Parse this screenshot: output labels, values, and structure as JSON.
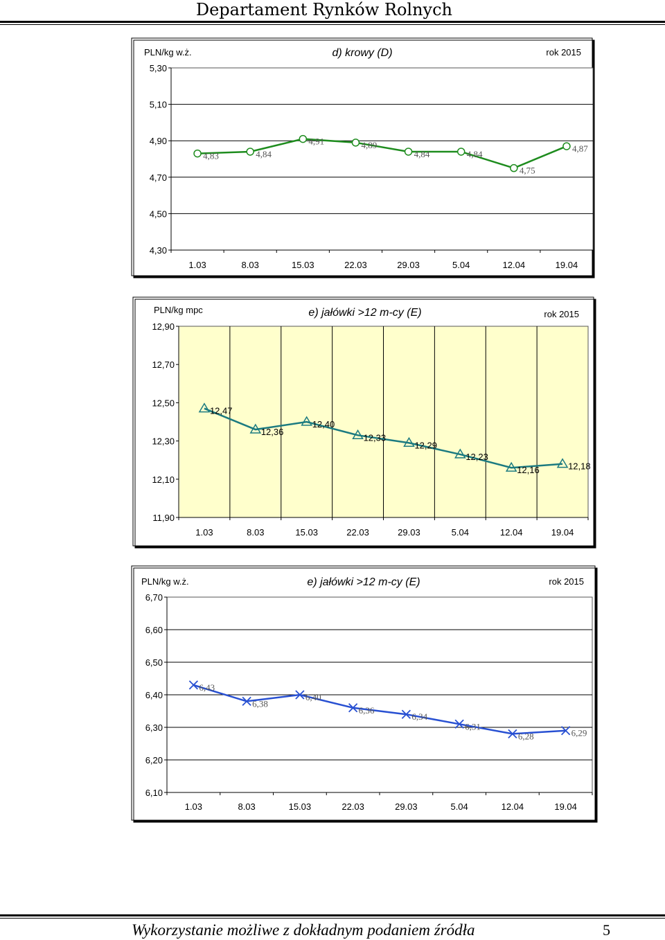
{
  "header": {
    "title": "Departament Rynków Rolnych"
  },
  "footer": {
    "text": "Wykorzystanie możliwe z dokładnym podaniem źródła",
    "page": "5"
  },
  "chart_data": [
    {
      "type": "line",
      "title": "d) krowy (D)",
      "unit": "PLN/kg w.ż.",
      "year_label": "rok 2015",
      "categories": [
        "1.03",
        "8.03",
        "15.03",
        "22.03",
        "29.03",
        "5.04",
        "12.04",
        "19.04"
      ],
      "series": [
        {
          "values": [
            4.83,
            4.84,
            4.91,
            4.89,
            4.84,
            4.84,
            4.75,
            4.87
          ],
          "labels": [
            "4,83",
            "4,84",
            "4,91",
            "4,89",
            "4,84",
            "4,84",
            "4,75",
            "4,87"
          ]
        }
      ],
      "ylim": [
        4.3,
        5.3
      ],
      "yticks": [
        "5,30",
        "5,10",
        "4,90",
        "4,70",
        "4,50",
        "4,30"
      ],
      "grid": "horizontal",
      "line_color": "#1e8c1e",
      "marker": "circle",
      "plot_background": "#ffffff"
    },
    {
      "type": "line",
      "title": "e) jałówki >12 m-cy (E)",
      "unit": "PLN/kg mpc",
      "year_label": "rok 2015",
      "categories": [
        "1.03",
        "8.03",
        "15.03",
        "22.03",
        "29.03",
        "5.04",
        "12.04",
        "19.04"
      ],
      "series": [
        {
          "values": [
            12.47,
            12.36,
            12.4,
            12.33,
            12.29,
            12.23,
            12.16,
            12.18
          ],
          "labels": [
            "12,47",
            "12,36",
            "12,40",
            "12,33",
            "12,29",
            "12,23",
            "12,16",
            "12,18"
          ]
        }
      ],
      "ylim": [
        11.9,
        12.9
      ],
      "yticks": [
        "12,90",
        "12,70",
        "12,50",
        "12,30",
        "12,10",
        "11,90"
      ],
      "grid": "vertical",
      "line_color": "#1b7a80",
      "marker": "triangle",
      "plot_background": "#ffffcc"
    },
    {
      "type": "line",
      "title": "e) jałówki >12 m-cy (E)",
      "unit": "PLN/kg w.ż.",
      "year_label": "rok 2015",
      "categories": [
        "1.03",
        "8.03",
        "15.03",
        "22.03",
        "29.03",
        "5.04",
        "12.04",
        "19.04"
      ],
      "series": [
        {
          "values": [
            6.43,
            6.38,
            6.4,
            6.36,
            6.34,
            6.31,
            6.28,
            6.29
          ],
          "labels": [
            "6,43",
            "6,38",
            "6,40",
            "6,36",
            "6,34",
            "6,31",
            "6,28",
            "6,29"
          ]
        }
      ],
      "ylim": [
        6.1,
        6.7
      ],
      "yticks": [
        "6,70",
        "6,60",
        "6,50",
        "6,40",
        "6,30",
        "6,20",
        "6,10"
      ],
      "grid": "horizontal",
      "line_color": "#2850d2",
      "marker": "x",
      "plot_background": "#ffffff"
    }
  ]
}
